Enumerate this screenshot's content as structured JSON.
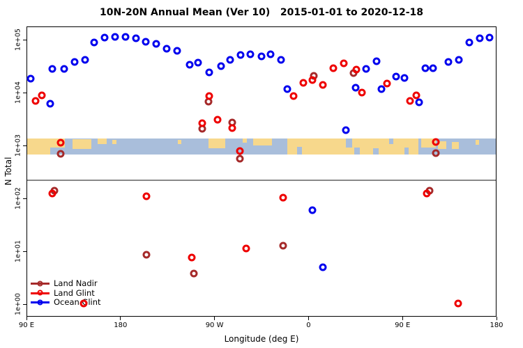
{
  "chart_data": {
    "type": "scatter",
    "title": "10N-20N Annual Mean (Ver 10)   2015-01-01 to 2020-12-18",
    "xlabel": "Longitude (deg E)",
    "ylabel": "N Total",
    "x_axis": {
      "note": "longitude axis runs eastward from 90E, wrapping through 180, 90W, 0, 90E to 180",
      "range_axis_deg": [
        90,
        540
      ],
      "ticks": [
        {
          "lon": 90,
          "label": "90 E"
        },
        {
          "lon": 180,
          "label": "180"
        },
        {
          "lon": 270,
          "label": "90 W"
        },
        {
          "lon": 360,
          "label": "0"
        },
        {
          "lon": 450,
          "label": "90 E"
        },
        {
          "lon": 540,
          "label": "180"
        }
      ]
    },
    "y_axis": {
      "scale": "log10",
      "range": [
        1,
        100000
      ],
      "ticks": [
        {
          "value": 1,
          "label": "1e+00"
        },
        {
          "value": 10,
          "label": "1e+01"
        },
        {
          "value": 100,
          "label": "1e+02"
        },
        {
          "value": 1000,
          "label": "1e+03"
        },
        {
          "value": 10000,
          "label": "1e+04"
        },
        {
          "value": 100000,
          "label": "1e+05"
        }
      ]
    },
    "reference_line": {
      "value": 220,
      "color": "#888888"
    },
    "map_band": {
      "description": "world-map strip of the 10N-20N latitude zone overlaid at the 1e+03 level",
      "top_value": 1350,
      "bottom_value": 675,
      "water_color": "#A9BEDB",
      "land_color": "#F7D88C",
      "land_patches": [
        {
          "lon1": 90,
          "lon2": 104,
          "top": 0,
          "h": 1.0
        },
        {
          "lon1": 103,
          "lon2": 127,
          "top": 0,
          "h": 0.55
        },
        {
          "lon1": 104,
          "lon2": 113,
          "top": 0.4,
          "h": 0.6
        },
        {
          "lon1": 134,
          "lon2": 152,
          "top": 0.05,
          "h": 0.6
        },
        {
          "lon1": 158,
          "lon2": 167,
          "top": 0,
          "h": 0.35
        },
        {
          "lon1": 172,
          "lon2": 176,
          "top": 0.1,
          "h": 0.25
        },
        {
          "lon1": 235,
          "lon2": 238,
          "top": 0.1,
          "h": 0.25
        },
        {
          "lon1": 264,
          "lon2": 280,
          "top": 0,
          "h": 0.6
        },
        {
          "lon1": 297,
          "lon2": 301,
          "top": 0,
          "h": 0.25
        },
        {
          "lon1": 307,
          "lon2": 325,
          "top": 0,
          "h": 0.45
        },
        {
          "lon1": 340,
          "lon2": 465,
          "top": 0,
          "h": 1.0
        },
        {
          "lon1": 468,
          "lon2": 482,
          "top": 0,
          "h": 0.55
        },
        {
          "lon1": 484,
          "lon2": 492,
          "top": 0.15,
          "h": 0.5
        },
        {
          "lon1": 497,
          "lon2": 504,
          "top": 0.2,
          "h": 0.45
        },
        {
          "lon1": 520,
          "lon2": 523,
          "top": 0.1,
          "h": 0.3
        }
      ],
      "water_notches": [
        {
          "lon1": 349,
          "lon2": 354,
          "top": 0.5,
          "h": 0.5
        },
        {
          "lon1": 396,
          "lon2": 402,
          "top": 0,
          "h": 0.55
        },
        {
          "lon1": 404,
          "lon2": 409,
          "top": 0.55,
          "h": 0.45
        },
        {
          "lon1": 422,
          "lon2": 427,
          "top": 0.6,
          "h": 0.4
        },
        {
          "lon1": 437,
          "lon2": 441,
          "top": 0,
          "h": 0.35
        },
        {
          "lon1": 452,
          "lon2": 456,
          "top": 0.55,
          "h": 0.45
        }
      ]
    },
    "series": [
      {
        "name": "Land Nadir",
        "color": "#A52A2A",
        "marker": "open-circle",
        "points": [
          [
            117,
            140
          ],
          [
            123,
            695
          ],
          [
            205,
            8.6
          ],
          [
            250,
            3.8
          ],
          [
            258,
            2070
          ],
          [
            264,
            6740
          ],
          [
            287,
            2720
          ],
          [
            294,
            560
          ],
          [
            336,
            12.7
          ],
          [
            365,
            20700
          ],
          [
            403,
            23300
          ],
          [
            476,
            140
          ],
          [
            482,
            716
          ]
        ]
      },
      {
        "name": "Land Glint",
        "color": "#EE0000",
        "marker": "open-circle",
        "points": [
          [
            99,
            6950
          ],
          [
            105,
            8850
          ],
          [
            115,
            124
          ],
          [
            123,
            1130
          ],
          [
            145,
            1.03
          ],
          [
            205,
            109
          ],
          [
            248,
            7.6
          ],
          [
            258,
            2630
          ],
          [
            265,
            8600
          ],
          [
            273,
            3070
          ],
          [
            287,
            2130
          ],
          [
            294,
            785
          ],
          [
            300,
            11.3
          ],
          [
            336,
            103
          ],
          [
            346,
            8600
          ],
          [
            355,
            15300
          ],
          [
            364,
            17300
          ],
          [
            374,
            14000
          ],
          [
            384,
            28900
          ],
          [
            394,
            35700
          ],
          [
            406,
            27200
          ],
          [
            411,
            10000
          ],
          [
            435,
            14800
          ],
          [
            457,
            6950
          ],
          [
            463,
            8850
          ],
          [
            473,
            124
          ],
          [
            482,
            1160
          ],
          [
            503,
            1.03
          ]
        ]
      },
      {
        "name": "Ocean Glint",
        "color": "#0000EE",
        "marker": "open-circle",
        "points": [
          [
            94,
            18300
          ],
          [
            113,
            6200
          ],
          [
            115,
            28000
          ],
          [
            126,
            28000
          ],
          [
            136,
            37900
          ],
          [
            146,
            41800
          ],
          [
            155,
            88500
          ],
          [
            165,
            109000
          ],
          [
            175,
            113000
          ],
          [
            185,
            113000
          ],
          [
            195,
            106000
          ],
          [
            204,
            91400
          ],
          [
            214,
            83400
          ],
          [
            224,
            67500
          ],
          [
            234,
            61600
          ],
          [
            246,
            33600
          ],
          [
            254,
            36800
          ],
          [
            265,
            24100
          ],
          [
            276,
            31600
          ],
          [
            285,
            41800
          ],
          [
            295,
            51400
          ],
          [
            304,
            53000
          ],
          [
            315,
            48300
          ],
          [
            324,
            53000
          ],
          [
            334,
            41800
          ],
          [
            340,
            11600
          ],
          [
            364,
            60
          ],
          [
            374,
            5.0
          ],
          [
            396,
            1950
          ],
          [
            405,
            12400
          ],
          [
            415,
            28000
          ],
          [
            425,
            39100
          ],
          [
            430,
            11600
          ],
          [
            444,
            20000
          ],
          [
            452,
            18900
          ],
          [
            466,
            6550
          ],
          [
            472,
            28900
          ],
          [
            479,
            28900
          ],
          [
            494,
            37900
          ],
          [
            504,
            41800
          ],
          [
            514,
            88500
          ],
          [
            524,
            106000
          ],
          [
            533,
            109000
          ]
        ]
      }
    ],
    "legend": {
      "position": "bottom-left"
    }
  }
}
